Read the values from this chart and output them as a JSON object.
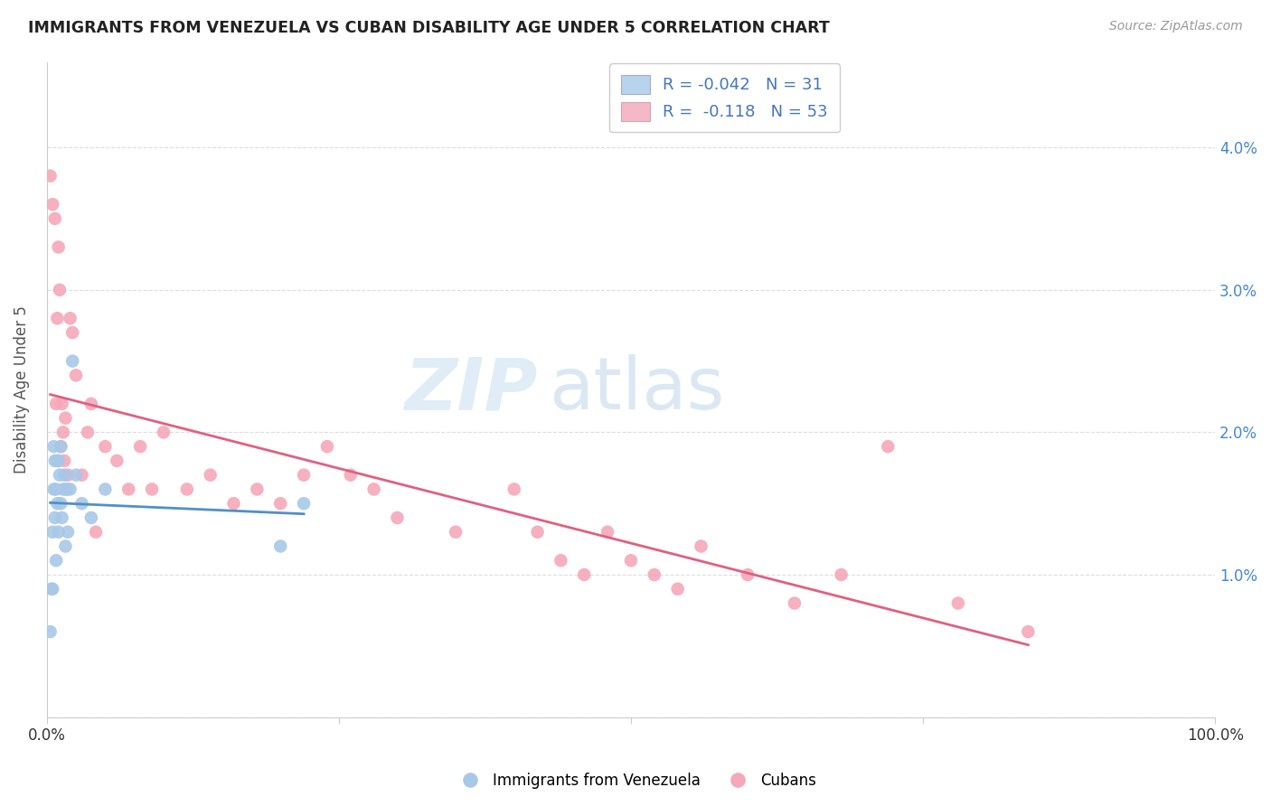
{
  "title": "IMMIGRANTS FROM VENEZUELA VS CUBAN DISABILITY AGE UNDER 5 CORRELATION CHART",
  "source": "Source: ZipAtlas.com",
  "ylabel": "Disability Age Under 5",
  "watermark": "ZIPatlas",
  "legend_blue_R": "-0.042",
  "legend_blue_N": "31",
  "legend_pink_R": "-0.118",
  "legend_pink_N": "53",
  "xlim": [
    0.0,
    1.0
  ],
  "ylim": [
    0.0,
    0.046
  ],
  "xticks": [
    0.0,
    0.25,
    0.5,
    0.75,
    1.0
  ],
  "xtick_labels": [
    "0.0%",
    "",
    "",
    "",
    "100.0%"
  ],
  "yticks": [
    0.0,
    0.01,
    0.02,
    0.03,
    0.04
  ],
  "ytick_labels": [
    "",
    "1.0%",
    "2.0%",
    "3.0%",
    "4.0%"
  ],
  "blue_color": "#a8c8e8",
  "pink_color": "#f5a8b8",
  "blue_line_color": "#5090c8",
  "pink_line_color": "#e06080",
  "blue_legend_color": "#b8d4ec",
  "pink_legend_color": "#f5b8c8",
  "blue_scatter_x": [
    0.003,
    0.004,
    0.005,
    0.005,
    0.006,
    0.006,
    0.007,
    0.007,
    0.008,
    0.008,
    0.009,
    0.009,
    0.01,
    0.01,
    0.011,
    0.012,
    0.012,
    0.013,
    0.014,
    0.015,
    0.016,
    0.017,
    0.018,
    0.02,
    0.022,
    0.025,
    0.03,
    0.038,
    0.05,
    0.2,
    0.22
  ],
  "blue_scatter_y": [
    0.006,
    0.009,
    0.013,
    0.009,
    0.016,
    0.019,
    0.014,
    0.018,
    0.011,
    0.016,
    0.015,
    0.018,
    0.018,
    0.013,
    0.017,
    0.015,
    0.019,
    0.014,
    0.016,
    0.017,
    0.012,
    0.016,
    0.013,
    0.016,
    0.025,
    0.017,
    0.015,
    0.014,
    0.016,
    0.012,
    0.015
  ],
  "pink_scatter_x": [
    0.003,
    0.005,
    0.007,
    0.008,
    0.009,
    0.01,
    0.011,
    0.012,
    0.013,
    0.014,
    0.015,
    0.016,
    0.017,
    0.018,
    0.02,
    0.022,
    0.025,
    0.03,
    0.035,
    0.038,
    0.042,
    0.05,
    0.06,
    0.07,
    0.08,
    0.09,
    0.1,
    0.12,
    0.14,
    0.16,
    0.18,
    0.2,
    0.22,
    0.24,
    0.26,
    0.28,
    0.3,
    0.35,
    0.4,
    0.42,
    0.44,
    0.46,
    0.48,
    0.5,
    0.52,
    0.54,
    0.56,
    0.6,
    0.64,
    0.68,
    0.72,
    0.78,
    0.84
  ],
  "pink_scatter_y": [
    0.038,
    0.036,
    0.035,
    0.022,
    0.028,
    0.033,
    0.03,
    0.019,
    0.022,
    0.02,
    0.018,
    0.021,
    0.016,
    0.017,
    0.028,
    0.027,
    0.024,
    0.017,
    0.02,
    0.022,
    0.013,
    0.019,
    0.018,
    0.016,
    0.019,
    0.016,
    0.02,
    0.016,
    0.017,
    0.015,
    0.016,
    0.015,
    0.017,
    0.019,
    0.017,
    0.016,
    0.014,
    0.013,
    0.016,
    0.013,
    0.011,
    0.01,
    0.013,
    0.011,
    0.01,
    0.009,
    0.012,
    0.01,
    0.008,
    0.01,
    0.019,
    0.008,
    0.006
  ],
  "background_color": "#ffffff",
  "grid_color": "#dddddd",
  "blue_line_solid_end": 0.22,
  "pink_line_start": 0.003,
  "pink_line_end": 0.84
}
